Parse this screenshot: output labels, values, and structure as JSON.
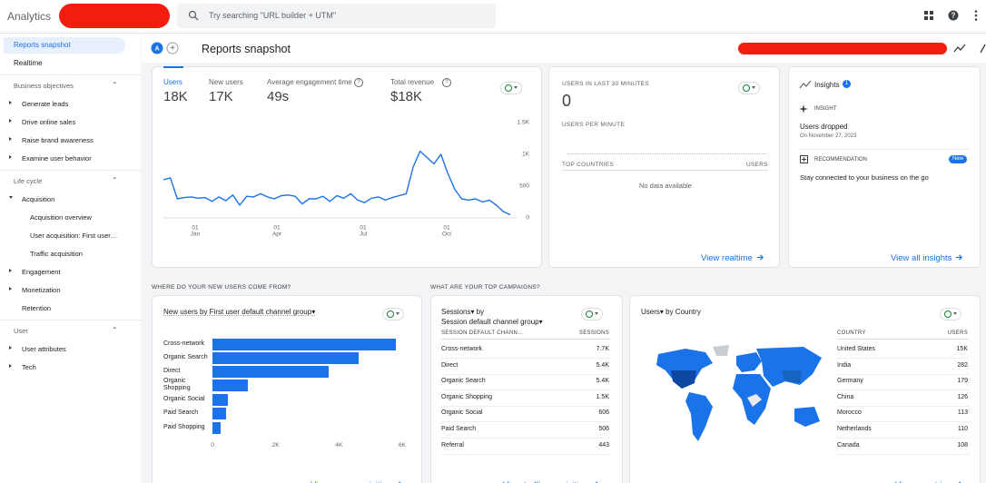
{
  "app": {
    "name": "Analytics",
    "search_placeholder": "Try searching \"URL builder + UTM\""
  },
  "sidebar": {
    "top": [
      "Reports snapshot",
      "Realtime"
    ],
    "groups": [
      {
        "title": "Business objectives",
        "items": [
          {
            "label": "Generate leads",
            "has_children": true
          },
          {
            "label": "Drive online sales",
            "has_children": true
          },
          {
            "label": "Raise brand awareness",
            "has_children": true
          },
          {
            "label": "Examine user behavior",
            "has_children": true
          }
        ]
      },
      {
        "title": "Life cycle",
        "items": [
          {
            "label": "Acquisition",
            "has_children": true,
            "children": [
              "Acquisition overview",
              "User acquisition: First user…",
              "Traffic acquisition"
            ]
          },
          {
            "label": "Engagement",
            "has_children": true
          },
          {
            "label": "Monetization",
            "has_children": true
          },
          {
            "label": "Retention",
            "has_children": false
          }
        ]
      },
      {
        "title": "User",
        "items": [
          {
            "label": "User attributes",
            "has_children": true
          },
          {
            "label": "Tech",
            "has_children": true
          }
        ]
      }
    ]
  },
  "page_title": "Reports snapshot",
  "overview": {
    "metrics": [
      {
        "label": "Users",
        "value": "18K"
      },
      {
        "label": "New users",
        "value": "17K"
      },
      {
        "label": "Average engagement time",
        "value": "49s"
      },
      {
        "label": "Total revenue",
        "value": "$18K"
      }
    ],
    "chart": {
      "type": "line",
      "color": "#1a73e8",
      "x_labels": [
        {
          "day": "01",
          "month": "Jan"
        },
        {
          "day": "01",
          "month": "Apr"
        },
        {
          "day": "01",
          "month": "Jul"
        },
        {
          "day": "01",
          "month": "Oct"
        }
      ],
      "values": [
        600,
        630,
        300,
        320,
        330,
        310,
        320,
        260,
        330,
        270,
        360,
        200,
        340,
        330,
        380,
        330,
        300,
        350,
        360,
        340,
        220,
        300,
        300,
        340,
        260,
        350,
        310,
        380,
        280,
        240,
        310,
        330,
        280,
        320,
        350,
        380,
        800,
        1050,
        950,
        850,
        1000,
        700,
        450,
        300,
        280,
        300,
        250,
        280,
        200,
        100,
        50
      ],
      "ylim": [
        0,
        1500
      ],
      "yticks": [
        0,
        500,
        {
          "value": 1000,
          "label": "1K"
        },
        {
          "value": 1500,
          "label": "1.5K"
        }
      ]
    }
  },
  "realtime": {
    "title": "USERS IN LAST 30 MINUTES",
    "value": "0",
    "per_minute": "USERS PER MINUTE",
    "col1": "TOP COUNTRIES",
    "col2": "USERS",
    "empty": "No data available",
    "link": "View realtime"
  },
  "insights": {
    "title": "Insights",
    "count": "1",
    "insight_tag": "INSIGHT",
    "insight_title": "Users dropped",
    "insight_date": "On November 27, 2023",
    "rec_tag": "RECOMMENDATION",
    "new_badge": "New",
    "rec_title": "Stay connected to your business on the go",
    "link": "View all insights"
  },
  "sections": [
    "WHERE DO YOUR NEW USERS COME FROM?",
    "WHAT ARE YOUR TOP CAMPAIGNS?"
  ],
  "new_users": {
    "title": "New users by First user default channel group▾",
    "chart": {
      "type": "bar",
      "orientation": "horizontal",
      "color": "#1a73e8",
      "categories": [
        "Cross-network",
        "Organic Search",
        "Direct",
        "Organic Shopping",
        "Organic Social",
        "Paid Search",
        "Paid Shopping"
      ],
      "values": [
        5800,
        4620,
        3670,
        1120,
        490,
        430,
        260
      ],
      "xlim": [
        0,
        6000
      ],
      "xticks": [
        0,
        {
          "value": 2000,
          "label": "2K"
        },
        {
          "value": 4000,
          "label": "4K"
        },
        {
          "value": 6000,
          "label": "6K"
        }
      ]
    },
    "link": "View user acquisition"
  },
  "campaigns": {
    "title_line1": "Sessions▾ by",
    "title_line2": "Session default channel group▾",
    "columns": [
      "SESSION DEFAULT CHANN…",
      "SESSIONS"
    ],
    "rows": [
      [
        "Cross-network",
        "7.7K"
      ],
      [
        "Direct",
        "5.4K"
      ],
      [
        "Organic Search",
        "5.4K"
      ],
      [
        "Organic Shopping",
        "1.5K"
      ],
      [
        "Organic Social",
        "606"
      ],
      [
        "Paid Search",
        "506"
      ],
      [
        "Referral",
        "443"
      ]
    ],
    "link": "View traffic acquisition"
  },
  "countries": {
    "title": "Users▾ by Country",
    "columns": [
      "COUNTRY",
      "USERS"
    ],
    "rows": [
      [
        "United States",
        "15K"
      ],
      [
        "India",
        "282"
      ],
      [
        "Germany",
        "179"
      ],
      [
        "China",
        "126"
      ],
      [
        "Morocco",
        "113"
      ],
      [
        "Netherlands",
        "110"
      ],
      [
        "Canada",
        "108"
      ]
    ],
    "link": "View countries"
  }
}
